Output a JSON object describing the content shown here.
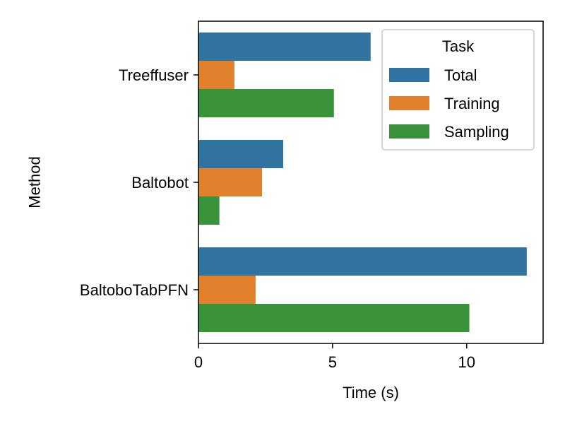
{
  "chart_data": {
    "type": "bar",
    "orientation": "horizontal",
    "categories": [
      "Treeffuser",
      "Baltobot",
      "BaltoboTabPFN"
    ],
    "series": [
      {
        "name": "Total",
        "color": "#3274a1",
        "values": [
          6.42,
          3.16,
          12.24
        ]
      },
      {
        "name": "Training",
        "color": "#e1812c",
        "values": [
          1.34,
          2.37,
          2.13
        ]
      },
      {
        "name": "Sampling",
        "color": "#3a923a",
        "values": [
          5.05,
          0.78,
          10.1
        ]
      }
    ],
    "xlabel": "Time (s)",
    "ylabel": "Method",
    "xlim": [
      0,
      12.85
    ],
    "xticks": [
      0,
      5,
      10
    ],
    "legend": {
      "title": "Task",
      "placement": "top-right"
    },
    "grid": false
  }
}
